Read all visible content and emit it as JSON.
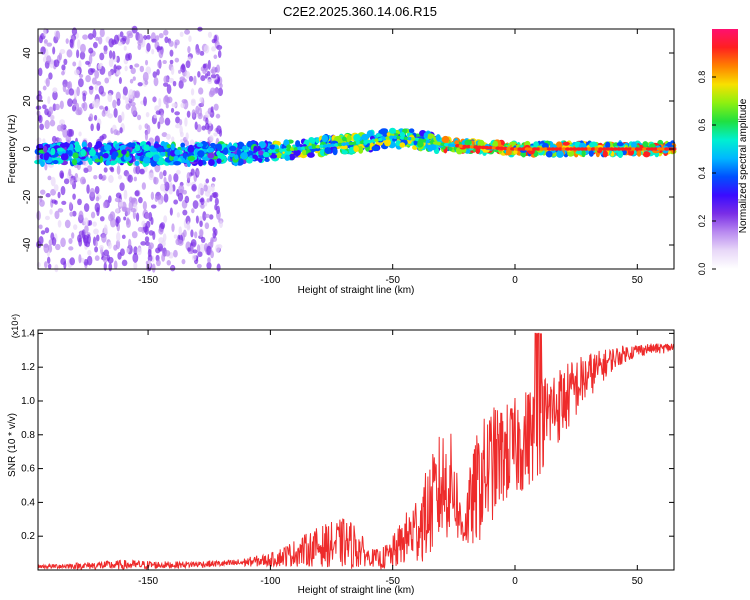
{
  "title": "C2E2.2025.360.14.06.R15",
  "colors": {
    "snr_line": "#ee2b2b",
    "colormap": [
      "#ffffff",
      "#e8d8f8",
      "#b98af0",
      "#7a2ee6",
      "#3a0cff",
      "#0050ff",
      "#00b8ff",
      "#00f0d0",
      "#20e040",
      "#8ef010",
      "#f8e000",
      "#ff8000",
      "#ff2020",
      "#ff1070"
    ]
  },
  "chart_data": [
    {
      "type": "heatmap",
      "title": "C2E2.2025.360.14.06.R15",
      "xlabel": "Height of straight line (km)",
      "ylabel": "Frequency (Hz)",
      "xlim": [
        -195,
        65
      ],
      "ylim": [
        -50,
        50
      ],
      "xticks": [
        -150,
        -100,
        -50,
        0,
        50
      ],
      "yticks": [
        40,
        20,
        0,
        -20,
        -40
      ],
      "colorbar": {
        "label": "Normalized spectral amplitude",
        "range": [
          0,
          1
        ],
        "ticks": [
          "0.0",
          "0.2",
          "0.4",
          "0.6",
          "0.8"
        ]
      },
      "ridge": {
        "description": "Dominant spectral line near 0 Hz; broad scattered energy below -120 km, rising slightly to ~5 Hz near -50 km, then narrow strong line near 0 Hz",
        "center_hz": [
          [
            -195,
            -2
          ],
          [
            -150,
            -2
          ],
          [
            -120,
            -2
          ],
          [
            -100,
            -1
          ],
          [
            -80,
            1
          ],
          [
            -60,
            3
          ],
          [
            -50,
            5
          ],
          [
            -40,
            4
          ],
          [
            -30,
            2
          ],
          [
            -20,
            1
          ],
          [
            0,
            0
          ],
          [
            65,
            0
          ]
        ]
      }
    },
    {
      "type": "line",
      "xlabel": "Height of straight line (km)",
      "ylabel": "SNR (10 * v/v)",
      "y_multiplier": "(x10⁴)",
      "xlim": [
        -195,
        65
      ],
      "ylim": [
        0,
        1.42
      ],
      "xticks": [
        -150,
        -100,
        -50,
        0,
        50
      ],
      "yticks": [
        "0.2",
        "0.4",
        "0.6",
        "0.8",
        "1.0",
        "1.2",
        "1.4"
      ],
      "envelope": {
        "x": [
          -195,
          -160,
          -140,
          -115,
          -100,
          -90,
          -80,
          -70,
          -65,
          -60,
          -55,
          -50,
          -45,
          -40,
          -35,
          -30,
          -25,
          -22,
          -20,
          -15,
          -10,
          -5,
          0,
          5,
          10,
          15,
          20,
          25,
          30,
          35,
          40,
          45,
          50,
          55,
          60,
          65
        ],
        "base": [
          0.02,
          0.03,
          0.03,
          0.04,
          0.06,
          0.1,
          0.14,
          0.16,
          0.14,
          0.08,
          0.06,
          0.1,
          0.18,
          0.25,
          0.35,
          0.5,
          0.5,
          0.25,
          0.3,
          0.5,
          0.62,
          0.68,
          0.72,
          0.78,
          0.85,
          0.95,
          1.0,
          1.08,
          1.15,
          1.2,
          1.25,
          1.28,
          1.3,
          1.31,
          1.31,
          1.32
        ],
        "amp": [
          0.01,
          0.03,
          0.02,
          0.02,
          0.04,
          0.08,
          0.12,
          0.15,
          0.14,
          0.05,
          0.06,
          0.1,
          0.15,
          0.22,
          0.28,
          0.35,
          0.3,
          0.12,
          0.2,
          0.35,
          0.35,
          0.3,
          0.3,
          0.3,
          0.3,
          0.25,
          0.22,
          0.18,
          0.14,
          0.1,
          0.07,
          0.05,
          0.04,
          0.03,
          0.03,
          0.03
        ]
      }
    }
  ]
}
